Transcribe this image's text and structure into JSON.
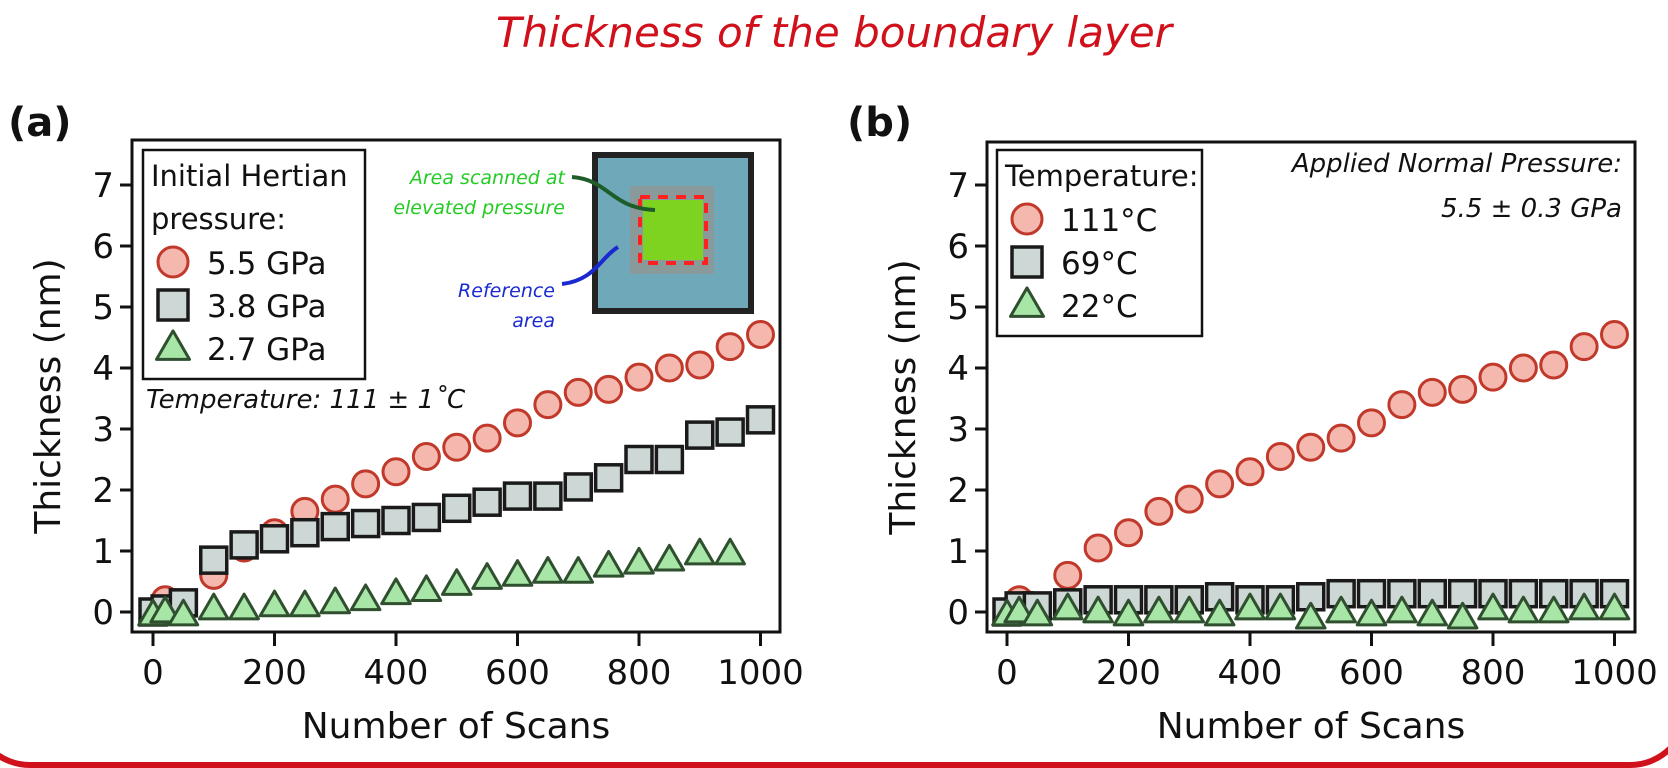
{
  "title": "Thickness of the boundary layer",
  "colors": {
    "title": "#d0101a",
    "circle_fill": "#f4b8ae",
    "circle_stroke": "#c0392b",
    "square_fill": "#cdd7d5",
    "square_stroke": "#1a1a1a",
    "triangle_fill": "#a8e6a8",
    "triangle_stroke": "#2f4f2f",
    "annot_green": "#22cc22",
    "annot_blue": "#1a2ad0"
  },
  "chart_data": [
    {
      "panel": "(a)",
      "type": "scatter",
      "title": "",
      "xlabel": "Number of Scans",
      "ylabel": "Thickness (nm)",
      "xlim": [
        -30,
        1030
      ],
      "ylim": [
        -0.35,
        7.7
      ],
      "xticks": [
        0,
        200,
        400,
        600,
        800,
        1000
      ],
      "yticks": [
        0,
        1,
        2,
        3,
        4,
        5,
        6,
        7
      ],
      "legend": {
        "title_lines": [
          "Initial Hertian",
          "pressure:"
        ],
        "placement": "top-left"
      },
      "annotations": [
        {
          "text": "Temperature: 111 ± 1˚C",
          "placement": "left-middle"
        },
        {
          "text_lines": [
            "Area scanned at",
            "elevated pressure"
          ],
          "color": "green"
        },
        {
          "text_lines": [
            "Reference",
            "area"
          ],
          "color": "blue"
        }
      ],
      "inset": "scan area schematic (reference area with central elevated-pressure area)",
      "series": [
        {
          "name": "5.5 GPa",
          "marker": "circle",
          "x": [
            0,
            20,
            50,
            100,
            150,
            200,
            250,
            300,
            350,
            400,
            450,
            500,
            550,
            600,
            650,
            700,
            750,
            800,
            850,
            900,
            950,
            1000
          ],
          "y": [
            0.0,
            0.2,
            0.1,
            0.6,
            1.05,
            1.3,
            1.65,
            1.85,
            2.1,
            2.3,
            2.55,
            2.7,
            2.85,
            3.1,
            3.4,
            3.6,
            3.65,
            3.85,
            4.0,
            4.05,
            4.35,
            4.55
          ]
        },
        {
          "name": "3.8 GPa",
          "marker": "square",
          "x": [
            0,
            20,
            50,
            100,
            150,
            200,
            250,
            300,
            350,
            400,
            450,
            500,
            550,
            600,
            650,
            700,
            750,
            800,
            850,
            900,
            950,
            1000
          ],
          "y": [
            0.0,
            0.05,
            0.15,
            0.85,
            1.1,
            1.2,
            1.3,
            1.4,
            1.45,
            1.5,
            1.55,
            1.7,
            1.8,
            1.9,
            1.9,
            2.05,
            2.2,
            2.5,
            2.5,
            2.9,
            2.95,
            3.15
          ]
        },
        {
          "name": "2.7 GPa",
          "marker": "triangle",
          "x": [
            0,
            20,
            50,
            100,
            150,
            200,
            250,
            300,
            350,
            400,
            450,
            500,
            550,
            600,
            650,
            700,
            750,
            800,
            850,
            900,
            950
          ],
          "y": [
            -0.05,
            0.0,
            -0.05,
            0.05,
            0.05,
            0.1,
            0.1,
            0.15,
            0.2,
            0.3,
            0.35,
            0.45,
            0.55,
            0.6,
            0.65,
            0.65,
            0.75,
            0.8,
            0.85,
            0.95,
            0.95
          ]
        }
      ]
    },
    {
      "panel": "(b)",
      "type": "scatter",
      "title": "",
      "xlabel": "Number of Scans",
      "ylabel": "Thickness (nm)",
      "xlim": [
        -30,
        1030
      ],
      "ylim": [
        -0.35,
        7.7
      ],
      "xticks": [
        0,
        200,
        400,
        600,
        800,
        1000
      ],
      "yticks": [
        0,
        1,
        2,
        3,
        4,
        5,
        6,
        7
      ],
      "legend": {
        "title_lines": [
          "Temperature:"
        ],
        "placement": "top-left"
      },
      "annotations": [
        {
          "text_lines": [
            "Applied Normal Pressure:",
            "5.5 ± 0.3 GPa"
          ],
          "placement": "top-right"
        }
      ],
      "series": [
        {
          "name": "111°C",
          "marker": "circle",
          "x": [
            0,
            20,
            50,
            100,
            150,
            200,
            250,
            300,
            350,
            400,
            450,
            500,
            550,
            600,
            650,
            700,
            750,
            800,
            850,
            900,
            950,
            1000
          ],
          "y": [
            0.0,
            0.2,
            0.1,
            0.6,
            1.05,
            1.3,
            1.65,
            1.85,
            2.1,
            2.3,
            2.55,
            2.7,
            2.85,
            3.1,
            3.4,
            3.6,
            3.65,
            3.85,
            4.0,
            4.05,
            4.35,
            4.55
          ]
        },
        {
          "name": "69°C",
          "marker": "square",
          "x": [
            0,
            20,
            50,
            100,
            150,
            200,
            250,
            300,
            350,
            400,
            450,
            500,
            550,
            600,
            650,
            700,
            750,
            800,
            850,
            900,
            950,
            1000
          ],
          "y": [
            0.0,
            0.1,
            0.1,
            0.15,
            0.2,
            0.2,
            0.2,
            0.2,
            0.25,
            0.2,
            0.2,
            0.25,
            0.3,
            0.3,
            0.3,
            0.3,
            0.3,
            0.3,
            0.3,
            0.3,
            0.3,
            0.3
          ]
        },
        {
          "name": "22°C",
          "marker": "triangle",
          "x": [
            0,
            20,
            50,
            100,
            150,
            200,
            250,
            300,
            350,
            400,
            450,
            500,
            550,
            600,
            650,
            700,
            750,
            800,
            850,
            900,
            950,
            1000
          ],
          "y": [
            -0.05,
            0.0,
            -0.05,
            0.05,
            0.0,
            -0.05,
            0.0,
            0.0,
            -0.05,
            0.05,
            0.05,
            -0.1,
            0.0,
            -0.05,
            0.0,
            -0.05,
            -0.1,
            0.05,
            0.0,
            0.0,
            0.05,
            0.05
          ]
        }
      ]
    }
  ]
}
